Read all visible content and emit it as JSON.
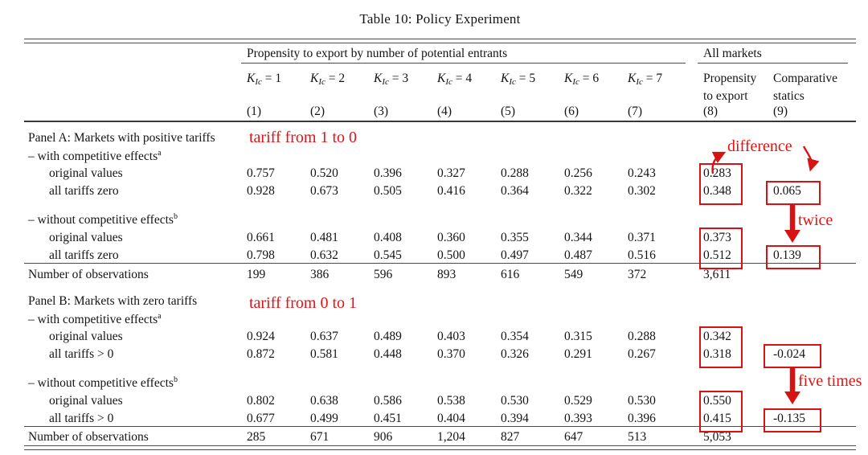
{
  "title": "Table 10: Policy Experiment",
  "colors": {
    "annotation_red": "#e01414",
    "rule_gray": "#4b4b4b"
  },
  "header": {
    "group": "Propensity to export by number of potential entrants",
    "all_markets": "All markets",
    "k_base": "K",
    "k_sub": "Ic",
    "k_cols": [
      {
        "eq": " = 1",
        "num": "(1)"
      },
      {
        "eq": " = 2",
        "num": "(2)"
      },
      {
        "eq": " = 3",
        "num": "(3)"
      },
      {
        "eq": " = 4",
        "num": "(4)"
      },
      {
        "eq": " = 5",
        "num": "(5)"
      },
      {
        "eq": " = 6",
        "num": "(6)"
      },
      {
        "eq": " = 7",
        "num": "(7)"
      }
    ],
    "col8": {
      "line1": "Propensity",
      "line2": "to export",
      "num": "(8)"
    },
    "col9": {
      "line1": "Comparative",
      "line2": "statics",
      "num": "(9)"
    }
  },
  "panelA": {
    "title": "Panel A: Markets with positive tariffs",
    "annotation": "tariff from 1 to 0",
    "with": {
      "label": "– with competitive effects",
      "sup": "a",
      "rows": [
        {
          "label": "original values",
          "values": [
            "0.757",
            "0.520",
            "0.396",
            "0.327",
            "0.288",
            "0.256",
            "0.243"
          ],
          "all_markets": "0.283",
          "comparative": ""
        },
        {
          "label": "all tariffs zero",
          "values": [
            "0.928",
            "0.673",
            "0.505",
            "0.416",
            "0.364",
            "0.322",
            "0.302"
          ],
          "all_markets": "0.348",
          "comparative": "0.065"
        }
      ]
    },
    "without": {
      "label": "– without competitive effects",
      "sup": "b",
      "rows": [
        {
          "label": "original values",
          "values": [
            "0.661",
            "0.481",
            "0.408",
            "0.360",
            "0.355",
            "0.344",
            "0.371"
          ],
          "all_markets": "0.373",
          "comparative": ""
        },
        {
          "label": "all tariffs zero",
          "values": [
            "0.798",
            "0.632",
            "0.545",
            "0.500",
            "0.497",
            "0.487",
            "0.516"
          ],
          "all_markets": "0.512",
          "comparative": "0.139"
        }
      ]
    },
    "observations": {
      "label": "Number of observations",
      "values": [
        "199",
        "386",
        "596",
        "893",
        "616",
        "549",
        "372"
      ],
      "all_markets": "3,611"
    }
  },
  "panelB": {
    "title": "Panel B: Markets with zero tariffs",
    "annotation": "tariff from 0 to 1",
    "with": {
      "label": "– with competitive effects",
      "sup": "a",
      "rows": [
        {
          "label": "original values",
          "values": [
            "0.924",
            "0.637",
            "0.489",
            "0.403",
            "0.354",
            "0.315",
            "0.288"
          ],
          "all_markets": "0.342",
          "comparative": ""
        },
        {
          "label": "all tariffs > 0",
          "values": [
            "0.872",
            "0.581",
            "0.448",
            "0.370",
            "0.326",
            "0.291",
            "0.267"
          ],
          "all_markets": "0.318",
          "comparative": "-0.024"
        }
      ]
    },
    "without": {
      "label": "– without competitive effects",
      "sup": "b",
      "rows": [
        {
          "label": "original values",
          "values": [
            "0.802",
            "0.638",
            "0.586",
            "0.538",
            "0.530",
            "0.529",
            "0.530"
          ],
          "all_markets": "0.550",
          "comparative": ""
        },
        {
          "label": "all tariffs > 0",
          "values": [
            "0.677",
            "0.499",
            "0.451",
            "0.404",
            "0.394",
            "0.393",
            "0.396"
          ],
          "all_markets": "0.415",
          "comparative": "-0.135"
        }
      ]
    },
    "observations": {
      "label": "Number of observations",
      "values": [
        "285",
        "671",
        "906",
        "1,204",
        "827",
        "647",
        "513"
      ],
      "all_markets": "5,053"
    }
  },
  "annotations": {
    "difference": "difference",
    "twice": "twice",
    "five_times": "five times"
  }
}
